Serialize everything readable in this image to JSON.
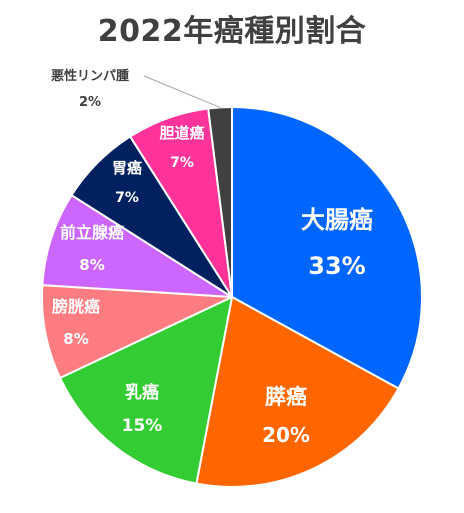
{
  "chart_data": {
    "type": "pie",
    "title": "2022年癌種別割合",
    "start_angle_deg": 0,
    "direction": "clockwise",
    "slices": [
      {
        "label": "大腸癌",
        "value": 33,
        "value_label": "33%",
        "color": "#0066FF"
      },
      {
        "label": "膵癌",
        "value": 20,
        "value_label": "20%",
        "color": "#FF6600"
      },
      {
        "label": "乳癌",
        "value": 15,
        "value_label": "15%",
        "color": "#33CC33"
      },
      {
        "label": "膀胱癌",
        "value": 8,
        "value_label": "8%",
        "color": "#FF7C80"
      },
      {
        "label": "前立腺癌",
        "value": 8,
        "value_label": "8%",
        "color": "#CC66FF"
      },
      {
        "label": "胃癌",
        "value": 7,
        "value_label": "7%",
        "color": "#002060"
      },
      {
        "label": "胆道癌",
        "value": 7,
        "value_label": "7%",
        "color": "#FF3399"
      },
      {
        "label": "悪性リンパ腫",
        "value": 2,
        "value_label": "2%",
        "color": "#404040"
      }
    ]
  }
}
